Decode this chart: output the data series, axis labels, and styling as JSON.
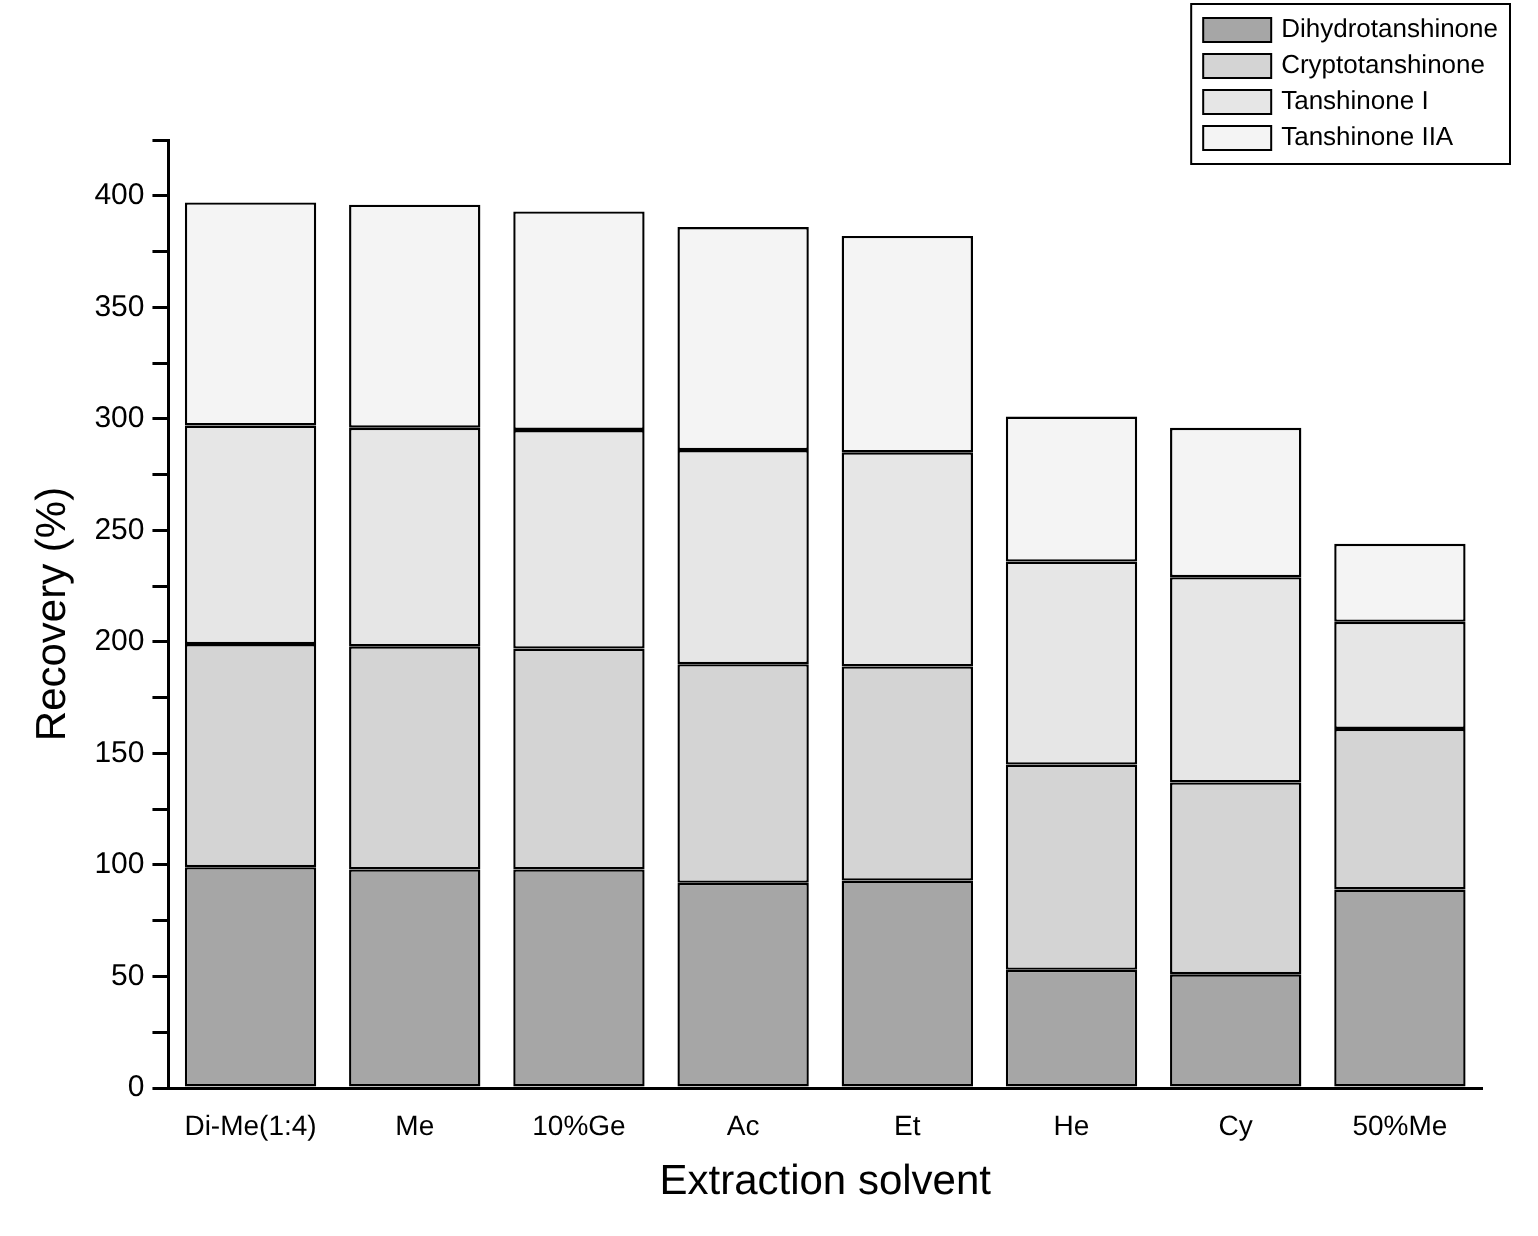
{
  "chart_data": {
    "type": "bar",
    "stacked": true,
    "xlabel": "Extraction solvent",
    "ylabel": "Recovery (%)",
    "categories": [
      "Di-Me(1:4)",
      "Me",
      "10%Ge",
      "Ac",
      "Et",
      "He",
      "Cy",
      "50%Me"
    ],
    "series": [
      {
        "name": "Dihydrotanshinone",
        "color": "#a6a6a6",
        "values": [
          99,
          98,
          98,
          92,
          93,
          53,
          51,
          89
        ]
      },
      {
        "name": "Cryptotanshinone",
        "color": "#d4d4d4",
        "values": [
          100,
          100,
          99,
          98,
          96,
          92,
          86,
          72
        ]
      },
      {
        "name": "Tanshinone I",
        "color": "#e6e6e6",
        "values": [
          98,
          98,
          98,
          96,
          96,
          91,
          92,
          48
        ]
      },
      {
        "name": "Tanshinone IIA",
        "color": "#f4f4f4",
        "values": [
          100,
          100,
          98,
          100,
          97,
          65,
          67,
          35
        ]
      }
    ],
    "ylim": [
      0,
      425
    ],
    "yticks": [
      0,
      {
        "value": 25,
        "label": null
      },
      50,
      {
        "value": 75,
        "label": null
      },
      100,
      {
        "value": 125,
        "label": null
      },
      150,
      {
        "value": 175,
        "label": null
      },
      200,
      {
        "value": 225,
        "label": null
      },
      250,
      {
        "value": 275,
        "label": null
      },
      300,
      {
        "value": 325,
        "label": null
      },
      350,
      {
        "value": 375,
        "label": null
      },
      400,
      {
        "value": 425,
        "label": null
      }
    ],
    "grid": false,
    "legend": "top right"
  }
}
